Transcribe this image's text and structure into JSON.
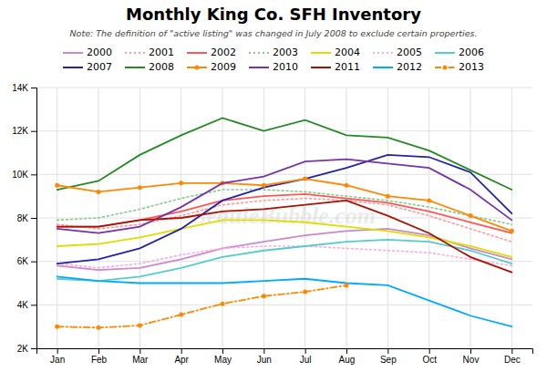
{
  "chart_data": {
    "type": "line",
    "title": "Monthly King Co. SFH Inventory",
    "subtitle": "Note: The definition of \"active listing\" was changed in July 2008 to exclude certain properties.",
    "annotations": [
      "SeattleBubble.com"
    ],
    "categories": [
      "Jan",
      "Feb",
      "Mar",
      "Apr",
      "May",
      "Jun",
      "Jul",
      "Aug",
      "Sep",
      "Oct",
      "Nov",
      "Dec"
    ],
    "series": [
      {
        "name": "2000",
        "color": "#cc88cc",
        "line_style": "solid",
        "values": [
          5800,
          5600,
          5700,
          6100,
          6600,
          6900,
          7200,
          7400,
          7500,
          7200,
          6600,
          6100
        ]
      },
      {
        "name": "2001",
        "color": "#ff9999",
        "line_style": "dotted",
        "values": [
          7700,
          7500,
          7700,
          8100,
          8600,
          8800,
          8900,
          8800,
          8600,
          8100,
          7500,
          6900
        ]
      },
      {
        "name": "2002",
        "color": "#ff5555",
        "line_style": "solid",
        "values": [
          7600,
          7600,
          7900,
          8300,
          8800,
          9000,
          9100,
          8900,
          8700,
          8300,
          7800,
          7300
        ]
      },
      {
        "name": "2003",
        "color": "#88cc88",
        "line_style": "dotted",
        "values": [
          7900,
          8000,
          8400,
          8900,
          9300,
          9300,
          9200,
          9000,
          8800,
          8500,
          8100,
          7700
        ]
      },
      {
        "name": "2004",
        "color": "#dddd00",
        "line_style": "solid",
        "values": [
          6700,
          6800,
          7100,
          7500,
          7900,
          7900,
          7800,
          7600,
          7400,
          7100,
          6700,
          6200
        ]
      },
      {
        "name": "2005",
        "color": "#ffaadd",
        "line_style": "dotted",
        "values": [
          5900,
          5700,
          5900,
          6300,
          6600,
          6700,
          6700,
          6600,
          6500,
          6400,
          6100,
          5800
        ]
      },
      {
        "name": "2006",
        "color": "#55cccc",
        "line_style": "solid",
        "values": [
          5200,
          5100,
          5300,
          5700,
          6200,
          6500,
          6700,
          6900,
          7000,
          6900,
          6500,
          5900
        ]
      },
      {
        "name": "2007",
        "color": "#2222aa",
        "line_style": "solid",
        "values": [
          5900,
          6100,
          6600,
          7500,
          8800,
          9400,
          9800,
          10300,
          10900,
          10800,
          10100,
          8200
        ]
      },
      {
        "name": "2008",
        "color": "#228b22",
        "line_style": "solid",
        "values": [
          9300,
          9700,
          10900,
          11800,
          12600,
          12000,
          12500,
          11800,
          11700,
          11100,
          10200,
          9300
        ]
      },
      {
        "name": "2009",
        "color": "#ff8800",
        "line_style": "solid",
        "marker": "circle",
        "values": [
          9500,
          9200,
          9400,
          9600,
          9600,
          9500,
          9800,
          9500,
          9000,
          8800,
          8100,
          7400
        ]
      },
      {
        "name": "2010",
        "color": "#7733aa",
        "line_style": "solid",
        "values": [
          7500,
          7300,
          7600,
          8500,
          9600,
          9900,
          10600,
          10700,
          10500,
          10300,
          9300,
          7900
        ]
      },
      {
        "name": "2011",
        "color": "#aa1100",
        "line_style": "solid",
        "values": [
          7600,
          7600,
          7900,
          8000,
          8300,
          8400,
          8600,
          8800,
          8100,
          7300,
          6200,
          5500
        ]
      },
      {
        "name": "2012",
        "color": "#00aaff",
        "line_style": "solid",
        "values": [
          5300,
          5100,
          5000,
          5000,
          5000,
          5100,
          5200,
          5000,
          4900,
          4200,
          3500,
          3000
        ]
      },
      {
        "name": "2013",
        "color": "#ff8800",
        "line_style": "dashdot",
        "marker": "circle",
        "values": [
          3000,
          2950,
          3050,
          3550,
          4050,
          4400,
          4600,
          4900,
          null,
          null,
          null,
          null
        ]
      }
    ],
    "ylim": [
      2000,
      14000
    ],
    "yticks": [
      {
        "value": 2000,
        "label": "2K"
      },
      {
        "value": 4000,
        "label": "4K"
      },
      {
        "value": 6000,
        "label": "6K"
      },
      {
        "value": 8000,
        "label": "8K"
      },
      {
        "value": 10000,
        "label": "10K"
      },
      {
        "value": 12000,
        "label": "12K"
      },
      {
        "value": 14000,
        "label": "14K"
      }
    ],
    "grid": true,
    "legend": "top"
  }
}
